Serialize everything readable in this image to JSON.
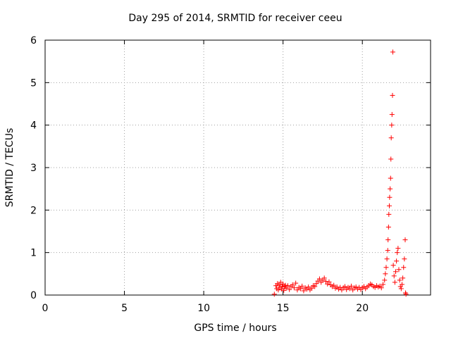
{
  "chart_data": {
    "type": "scatter",
    "title": "Day 295 of 2014, SRMTID for receiver ceeu",
    "xlabel": "GPS time / hours",
    "ylabel": "SRMTID / TECUs",
    "xlim": [
      0,
      24.3
    ],
    "ylim": [
      0,
      6
    ],
    "xticks": [
      0,
      5,
      10,
      15,
      20
    ],
    "yticks": [
      0,
      1,
      2,
      3,
      4,
      5,
      6
    ],
    "grid": true,
    "marker": "+",
    "color": "#ff0000",
    "series": [
      {
        "points": [
          [
            14.45,
            0.02
          ],
          [
            14.55,
            0.22
          ],
          [
            14.6,
            0.15
          ],
          [
            14.65,
            0.27
          ],
          [
            14.7,
            0.12
          ],
          [
            14.75,
            0.24
          ],
          [
            14.8,
            0.18
          ],
          [
            14.85,
            0.3
          ],
          [
            14.9,
            0.14
          ],
          [
            14.95,
            0.21
          ],
          [
            15.0,
            0.26
          ],
          [
            15.05,
            0.11
          ],
          [
            15.1,
            0.19
          ],
          [
            15.15,
            0.23
          ],
          [
            15.2,
            0.16
          ],
          [
            15.3,
            0.22
          ],
          [
            15.4,
            0.13
          ],
          [
            15.5,
            0.2
          ],
          [
            15.6,
            0.24
          ],
          [
            15.7,
            0.17
          ],
          [
            15.8,
            0.28
          ],
          [
            15.9,
            0.12
          ],
          [
            16.0,
            0.18
          ],
          [
            16.1,
            0.15
          ],
          [
            16.2,
            0.21
          ],
          [
            16.3,
            0.1
          ],
          [
            16.4,
            0.17
          ],
          [
            16.5,
            0.14
          ],
          [
            16.6,
            0.19
          ],
          [
            16.7,
            0.12
          ],
          [
            16.8,
            0.16
          ],
          [
            16.9,
            0.22
          ],
          [
            17.0,
            0.2
          ],
          [
            17.1,
            0.27
          ],
          [
            17.2,
            0.33
          ],
          [
            17.3,
            0.38
          ],
          [
            17.4,
            0.3
          ],
          [
            17.5,
            0.35
          ],
          [
            17.6,
            0.4
          ],
          [
            17.7,
            0.32
          ],
          [
            17.8,
            0.26
          ],
          [
            17.9,
            0.31
          ],
          [
            18.0,
            0.24
          ],
          [
            18.1,
            0.2
          ],
          [
            18.2,
            0.23
          ],
          [
            18.3,
            0.16
          ],
          [
            18.4,
            0.19
          ],
          [
            18.5,
            0.14
          ],
          [
            18.6,
            0.18
          ],
          [
            18.7,
            0.12
          ],
          [
            18.8,
            0.17
          ],
          [
            18.9,
            0.2
          ],
          [
            19.0,
            0.13
          ],
          [
            19.1,
            0.18
          ],
          [
            19.2,
            0.15
          ],
          [
            19.3,
            0.21
          ],
          [
            19.4,
            0.12
          ],
          [
            19.5,
            0.17
          ],
          [
            19.6,
            0.19
          ],
          [
            19.7,
            0.14
          ],
          [
            19.8,
            0.18
          ],
          [
            19.9,
            0.13
          ],
          [
            20.0,
            0.17
          ],
          [
            20.1,
            0.2
          ],
          [
            20.2,
            0.15
          ],
          [
            20.3,
            0.19
          ],
          [
            20.4,
            0.22
          ],
          [
            20.5,
            0.26
          ],
          [
            20.6,
            0.24
          ],
          [
            20.7,
            0.2
          ],
          [
            20.8,
            0.18
          ],
          [
            20.9,
            0.22
          ],
          [
            21.0,
            0.19
          ],
          [
            21.1,
            0.21
          ],
          [
            21.2,
            0.17
          ],
          [
            21.3,
            0.25
          ],
          [
            21.4,
            0.35
          ],
          [
            21.45,
            0.5
          ],
          [
            21.5,
            0.65
          ],
          [
            21.55,
            0.85
          ],
          [
            21.6,
            1.05
          ],
          [
            21.62,
            1.3
          ],
          [
            21.65,
            1.6
          ],
          [
            21.67,
            1.9
          ],
          [
            21.7,
            2.1
          ],
          [
            21.72,
            2.3
          ],
          [
            21.75,
            2.5
          ],
          [
            21.78,
            2.75
          ],
          [
            21.8,
            3.2
          ],
          [
            21.82,
            3.7
          ],
          [
            21.85,
            4.0
          ],
          [
            21.87,
            4.25
          ],
          [
            21.9,
            4.7
          ],
          [
            21.92,
            5.72
          ],
          [
            21.95,
            0.7
          ],
          [
            22.0,
            0.45
          ],
          [
            22.05,
            0.3
          ],
          [
            22.1,
            0.55
          ],
          [
            22.15,
            0.8
          ],
          [
            22.2,
            1.0
          ],
          [
            22.25,
            1.1
          ],
          [
            22.3,
            0.6
          ],
          [
            22.35,
            0.35
          ],
          [
            22.4,
            0.2
          ],
          [
            22.45,
            0.15
          ],
          [
            22.5,
            0.25
          ],
          [
            22.55,
            0.4
          ],
          [
            22.6,
            0.65
          ],
          [
            22.65,
            0.85
          ],
          [
            22.7,
            1.3
          ],
          [
            22.72,
            0.05
          ],
          [
            22.75,
            0.02
          ]
        ]
      }
    ]
  }
}
